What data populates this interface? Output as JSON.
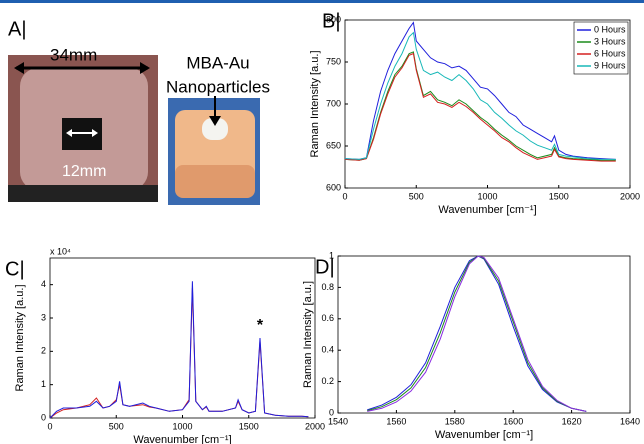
{
  "photo_panel": {
    "label": "A|",
    "outer_dimension": "34mm",
    "inner_dimension": "12mm",
    "annotation": [
      "MBA-Au",
      "Nanoparticles"
    ]
  },
  "chart_data": [
    {
      "type": "line",
      "panel_label": "B|",
      "x_label": "Wavenumber [cm⁻¹]",
      "y_label": "Raman Intensity [a.u.]",
      "x": [
        0,
        100,
        150,
        200,
        250,
        300,
        350,
        400,
        450,
        480,
        500,
        550,
        600,
        650,
        700,
        750,
        800,
        850,
        900,
        950,
        1000,
        1050,
        1100,
        1150,
        1200,
        1250,
        1300,
        1350,
        1400,
        1450,
        1470,
        1500,
        1550,
        1600,
        1700,
        1800,
        1900
      ],
      "series": [
        {
          "name": "0 Hours",
          "color": "#1f1fdc",
          "values": [
            635,
            634,
            636,
            680,
            715,
            740,
            760,
            775,
            790,
            797,
            775,
            765,
            755,
            750,
            748,
            743,
            745,
            740,
            730,
            720,
            718,
            710,
            700,
            690,
            685,
            675,
            670,
            665,
            660,
            655,
            662,
            645,
            640,
            638,
            636,
            635,
            634
          ]
        },
        {
          "name": "3 Hours",
          "color": "#1a8a1a",
          "values": [
            634,
            633,
            635,
            660,
            690,
            715,
            735,
            745,
            760,
            762,
            742,
            710,
            715,
            705,
            702,
            698,
            705,
            700,
            692,
            684,
            678,
            670,
            663,
            657,
            650,
            645,
            640,
            636,
            638,
            640,
            648,
            638,
            636,
            635,
            634,
            633,
            633
          ]
        },
        {
          "name": "6 Hours",
          "color": "#d42020",
          "values": [
            634,
            633,
            635,
            658,
            688,
            712,
            732,
            743,
            758,
            760,
            740,
            708,
            712,
            702,
            700,
            696,
            702,
            697,
            690,
            682,
            675,
            668,
            660,
            655,
            648,
            642,
            638,
            634,
            636,
            638,
            646,
            637,
            635,
            634,
            633,
            632,
            632
          ]
        },
        {
          "name": "9 Hours",
          "color": "#18b8b8",
          "values": [
            635,
            634,
            636,
            670,
            700,
            725,
            745,
            760,
            780,
            785,
            765,
            740,
            735,
            738,
            732,
            728,
            735,
            728,
            718,
            705,
            700,
            690,
            683,
            675,
            668,
            663,
            656,
            651,
            648,
            645,
            652,
            640,
            638,
            637,
            635,
            634,
            634
          ]
        }
      ],
      "xlim": [
        0,
        2000
      ],
      "xticks": [
        0,
        500,
        1000,
        1500,
        2000
      ],
      "ylim": [
        600,
        800
      ],
      "yticks": [
        600,
        650,
        700,
        750,
        800
      ],
      "legend": "top-right"
    },
    {
      "type": "line",
      "panel_label": "C|",
      "x_label": "Wavenumber [cm⁻¹]",
      "y_label": "Raman Intensity [a.u.]",
      "y_multiplier": "x 10⁴",
      "x": [
        0,
        50,
        100,
        200,
        300,
        350,
        400,
        450,
        500,
        525,
        550,
        600,
        700,
        750,
        800,
        900,
        1000,
        1050,
        1075,
        1100,
        1150,
        1180,
        1200,
        1300,
        1400,
        1420,
        1450,
        1500,
        1550,
        1585,
        1620,
        1700,
        1800,
        1900,
        1950
      ],
      "series": [
        {
          "color": "#d42020",
          "values": [
            0,
            0.15,
            0.25,
            0.3,
            0.4,
            0.6,
            0.3,
            0.35,
            0.55,
            1.0,
            0.4,
            0.35,
            0.4,
            0.33,
            0.3,
            0.2,
            0.25,
            0.55,
            3.9,
            0.5,
            0.25,
            0.33,
            0.2,
            0.2,
            0.3,
            0.5,
            0.25,
            0.15,
            0.2,
            2.3,
            0.15,
            0.08,
            0.05,
            0.05,
            0.04
          ]
        },
        {
          "color": "#1f1fdc",
          "values": [
            0,
            0.2,
            0.3,
            0.3,
            0.35,
            0.5,
            0.3,
            0.35,
            0.5,
            1.1,
            0.4,
            0.35,
            0.45,
            0.35,
            0.3,
            0.2,
            0.25,
            0.5,
            4.1,
            0.5,
            0.25,
            0.35,
            0.2,
            0.2,
            0.3,
            0.55,
            0.25,
            0.15,
            0.2,
            2.4,
            0.15,
            0.08,
            0.05,
            0.05,
            0.04
          ]
        }
      ],
      "annotation": {
        "text": "*",
        "x": 1585
      },
      "xlim": [
        0,
        2000
      ],
      "xticks": [
        0,
        500,
        1000,
        1500,
        2000
      ],
      "ylim": [
        0,
        4.8
      ],
      "yticks": [
        0,
        1,
        2,
        3,
        4
      ]
    },
    {
      "type": "line",
      "panel_label": "D|",
      "x_label": "Wavenumber [cm⁻¹]",
      "y_label": "Raman Intensity [a.u.]",
      "x": [
        1550,
        1555,
        1560,
        1565,
        1570,
        1575,
        1580,
        1585,
        1588,
        1590,
        1595,
        1600,
        1605,
        1610,
        1615,
        1620,
        1625
      ],
      "series": [
        {
          "color": "#1f1fdc",
          "values": [
            0.02,
            0.05,
            0.1,
            0.18,
            0.32,
            0.55,
            0.8,
            0.97,
            1,
            0.98,
            0.82,
            0.55,
            0.3,
            0.15,
            0.07,
            0.03,
            0.01
          ]
        },
        {
          "color": "#1a8a1a",
          "values": [
            0.015,
            0.04,
            0.085,
            0.16,
            0.29,
            0.51,
            0.77,
            0.96,
            1,
            0.985,
            0.84,
            0.58,
            0.32,
            0.16,
            0.075,
            0.03,
            0.01
          ]
        },
        {
          "color": "#8a2be2",
          "values": [
            0.01,
            0.03,
            0.07,
            0.14,
            0.26,
            0.47,
            0.74,
            0.95,
            1,
            0.99,
            0.86,
            0.6,
            0.34,
            0.17,
            0.08,
            0.03,
            0.01
          ]
        }
      ],
      "xlim": [
        1540,
        1640
      ],
      "xticks": [
        1540,
        1560,
        1580,
        1600,
        1620,
        1640
      ],
      "ylim": [
        0,
        1
      ],
      "yticks": [
        0,
        0.2,
        0.4,
        0.6,
        0.8,
        1
      ]
    }
  ]
}
